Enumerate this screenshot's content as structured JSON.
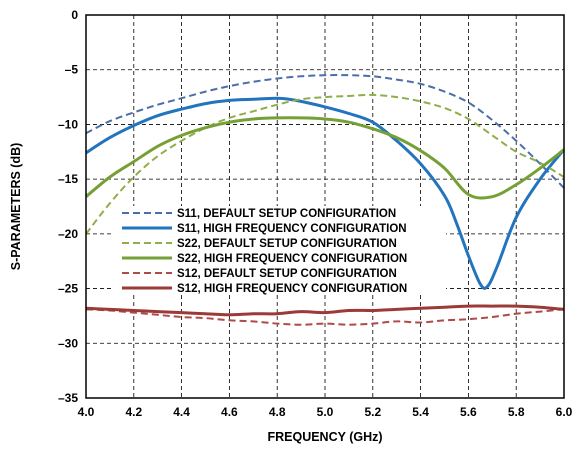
{
  "chart_data": {
    "type": "line",
    "title": "",
    "xlabel": "FREQUENCY (GHz)",
    "ylabel": "S-PARAMETERS (dB)",
    "xlim": [
      4.0,
      6.0
    ],
    "ylim": [
      -35,
      0
    ],
    "xticks": [
      4.0,
      4.2,
      4.4,
      4.6,
      4.8,
      5.0,
      5.2,
      5.4,
      5.6,
      5.8,
      6.0
    ],
    "xtick_labels": [
      "4.0",
      "4.2",
      "4.4",
      "4.6",
      "4.8",
      "5.0",
      "5.2",
      "5.4",
      "5.6",
      "5.8",
      "6.0"
    ],
    "yticks": [
      0,
      -5,
      -10,
      -15,
      -20,
      -25,
      -30,
      -35
    ],
    "ytick_labels": [
      "0",
      "–5",
      "–10",
      "–15",
      "–20",
      "–25",
      "–30",
      "–35"
    ],
    "grid": true,
    "legend_position": "center-right",
    "series": [
      {
        "name": "S11, DEFAULT SETUP CONFIGURATION",
        "color": "#4a6fa8",
        "dash": true,
        "x": [
          4.0,
          4.1,
          4.2,
          4.3,
          4.4,
          4.5,
          4.6,
          4.7,
          4.8,
          4.9,
          5.0,
          5.1,
          5.2,
          5.3,
          5.4,
          5.5,
          5.6,
          5.7,
          5.8,
          5.9,
          6.0
        ],
        "values": [
          -10.8,
          -9.7,
          -8.9,
          -8.2,
          -7.6,
          -7.0,
          -6.5,
          -6.1,
          -5.8,
          -5.6,
          -5.5,
          -5.5,
          -5.6,
          -5.9,
          -6.3,
          -7.0,
          -8.0,
          -9.6,
          -11.5,
          -13.6,
          -15.8
        ]
      },
      {
        "name": "S11, HIGH FREQUENCY CONFIGURATION",
        "color": "#2174bd",
        "dash": false,
        "x": [
          4.0,
          4.1,
          4.2,
          4.3,
          4.4,
          4.5,
          4.6,
          4.7,
          4.8,
          4.85,
          4.9,
          5.0,
          5.1,
          5.2,
          5.3,
          5.4,
          5.5,
          5.55,
          5.6,
          5.65,
          5.68,
          5.72,
          5.8,
          5.9,
          6.0
        ],
        "values": [
          -12.6,
          -11.2,
          -10.1,
          -9.2,
          -8.6,
          -8.1,
          -7.8,
          -7.7,
          -7.6,
          -7.7,
          -7.9,
          -8.4,
          -9.0,
          -9.8,
          -11.5,
          -13.6,
          -16.5,
          -19.0,
          -22.0,
          -24.6,
          -24.8,
          -23.0,
          -18.5,
          -15.0,
          -12.3
        ]
      },
      {
        "name": "S22, DEFAULT SETUP CONFIGURATION",
        "color": "#8fae4a",
        "dash": true,
        "x": [
          4.0,
          4.1,
          4.2,
          4.3,
          4.4,
          4.5,
          4.6,
          4.7,
          4.8,
          4.9,
          5.0,
          5.1,
          5.2,
          5.3,
          5.4,
          5.5,
          5.6,
          5.7,
          5.8,
          5.9,
          6.0
        ],
        "values": [
          -20.0,
          -17.2,
          -14.8,
          -12.9,
          -11.5,
          -10.3,
          -9.4,
          -8.8,
          -8.2,
          -7.7,
          -7.5,
          -7.4,
          -7.3,
          -7.5,
          -7.9,
          -8.5,
          -9.5,
          -11.0,
          -12.5,
          -13.5,
          -14.8
        ]
      },
      {
        "name": "S22, HIGH FREQUENCY CONFIGURATION",
        "color": "#76a035",
        "dash": false,
        "x": [
          4.0,
          4.1,
          4.2,
          4.3,
          4.4,
          4.5,
          4.6,
          4.7,
          4.8,
          4.9,
          5.0,
          5.1,
          5.2,
          5.3,
          5.4,
          5.5,
          5.6,
          5.7,
          5.8,
          5.9,
          6.0
        ],
        "values": [
          -16.6,
          -14.8,
          -13.4,
          -12.0,
          -11.0,
          -10.3,
          -9.8,
          -9.5,
          -9.4,
          -9.4,
          -9.5,
          -9.8,
          -10.4,
          -11.2,
          -12.4,
          -14.0,
          -16.4,
          -16.6,
          -15.5,
          -14.0,
          -12.3
        ]
      },
      {
        "name": "S12, DEFAULT SETUP CONFIGURATION",
        "color": "#b04a48",
        "dash": true,
        "x": [
          4.0,
          4.1,
          4.2,
          4.3,
          4.4,
          4.5,
          4.6,
          4.7,
          4.8,
          4.9,
          5.0,
          5.1,
          5.2,
          5.3,
          5.4,
          5.5,
          5.6,
          5.7,
          5.8,
          5.9,
          6.0
        ],
        "values": [
          -26.9,
          -27.0,
          -27.2,
          -27.4,
          -27.6,
          -27.7,
          -27.9,
          -28.0,
          -28.2,
          -28.3,
          -28.2,
          -28.3,
          -28.2,
          -28.0,
          -28.1,
          -27.9,
          -27.8,
          -27.6,
          -27.3,
          -27.1,
          -26.9
        ]
      },
      {
        "name": "S12, HIGH FREQUENCY CONFIGURATION",
        "color": "#9c3a37",
        "dash": false,
        "x": [
          4.0,
          4.1,
          4.2,
          4.3,
          4.4,
          4.5,
          4.6,
          4.7,
          4.8,
          4.9,
          5.0,
          5.1,
          5.2,
          5.3,
          5.4,
          5.5,
          5.6,
          5.7,
          5.8,
          5.9,
          6.0
        ],
        "values": [
          -26.8,
          -26.9,
          -27.0,
          -27.1,
          -27.2,
          -27.3,
          -27.4,
          -27.3,
          -27.3,
          -27.1,
          -27.2,
          -27.0,
          -27.0,
          -26.9,
          -26.8,
          -26.7,
          -26.6,
          -26.6,
          -26.6,
          -26.7,
          -26.9
        ]
      }
    ]
  }
}
